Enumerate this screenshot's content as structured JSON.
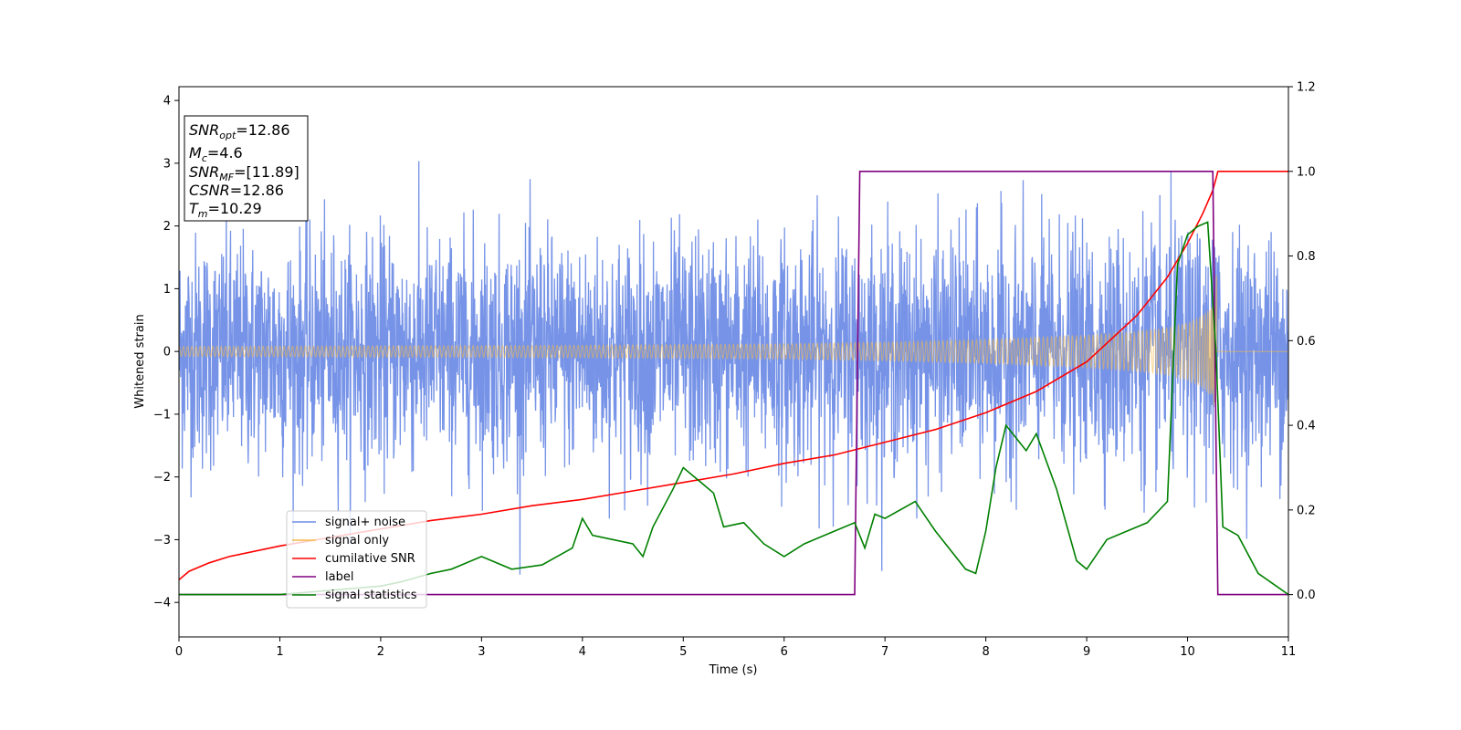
{
  "chart_data": {
    "type": "line",
    "xlabel": "Time (s)",
    "ylabel_left": "Whitened strain",
    "ylabel_right": "",
    "xlim": [
      0,
      11
    ],
    "ylim_left": [
      -4.55,
      4.22
    ],
    "ylim_right": [
      -0.1,
      1.2
    ],
    "xticks": [
      "0",
      "1",
      "2",
      "3",
      "4",
      "5",
      "6",
      "7",
      "8",
      "9",
      "10",
      "11"
    ],
    "yticks_left": [
      "4",
      "3",
      "2",
      "1",
      "0",
      "−1",
      "−2",
      "−3",
      "−4"
    ],
    "yticks_right": [
      "1.2",
      "1.0",
      "0.8",
      "0.6",
      "0.4",
      "0.2",
      "0.0"
    ],
    "grid": false,
    "legend_position": "lower-left",
    "info_box": {
      "snr_opt_main": "SNR",
      "snr_opt_sub": "opt",
      "snr_opt_value": "=12.86",
      "mc_main": "M",
      "mc_sub": "c",
      "mc_value": "=4.6",
      "snr_mf_main": "SNR",
      "snr_mf_sub": "MF",
      "snr_mf_value": "=[11.89]",
      "csnr_main": "CSNR",
      "csnr_value": "=12.86",
      "tm_main": "T",
      "tm_sub": "m",
      "tm_value": "=10.29"
    },
    "series": [
      {
        "name": "signal+ noise",
        "color": "#6f8de6",
        "axis": "left",
        "description_params": {
          "noise_std": 0.9,
          "merger_time": 10.29
        }
      },
      {
        "name": "signal only",
        "color": "#f5b947",
        "axis": "left",
        "envelope_x": [
          0,
          2,
          4,
          6,
          7,
          8,
          9,
          9.5,
          9.8,
          10.0,
          10.15,
          10.25,
          10.29,
          10.3,
          11
        ],
        "envelope_y": [
          0.08,
          0.09,
          0.1,
          0.12,
          0.15,
          0.19,
          0.26,
          0.32,
          0.38,
          0.46,
          0.58,
          0.75,
          1.25,
          0,
          0
        ]
      },
      {
        "name": "cumilative SNR",
        "color": "#ff0000",
        "axis": "right",
        "x": [
          0,
          0.1,
          0.3,
          0.5,
          1,
          1.5,
          2,
          2.5,
          3,
          3.5,
          4,
          4.5,
          5,
          5.5,
          6,
          6.5,
          7,
          7.5,
          8,
          8.5,
          9,
          9.5,
          9.8,
          10.0,
          10.15,
          10.25,
          10.29,
          10.3,
          11
        ],
        "y": [
          0.035,
          0.055,
          0.075,
          0.09,
          0.115,
          0.135,
          0.155,
          0.175,
          0.19,
          0.21,
          0.225,
          0.245,
          0.265,
          0.285,
          0.31,
          0.33,
          0.36,
          0.39,
          0.43,
          0.48,
          0.55,
          0.66,
          0.75,
          0.83,
          0.9,
          0.955,
          0.99,
          1.0,
          1.0
        ]
      },
      {
        "name": "label",
        "color": "#800080",
        "axis": "right",
        "x": [
          0,
          6.7,
          6.75,
          10.25,
          10.3,
          11
        ],
        "y": [
          0,
          0,
          1,
          1,
          0,
          0
        ]
      },
      {
        "name": "signal statistics",
        "color": "#008000",
        "axis": "right",
        "x": [
          0,
          1,
          2,
          2.2,
          2.5,
          2.7,
          3,
          3.3,
          3.6,
          3.9,
          4.0,
          4.1,
          4.3,
          4.5,
          4.6,
          4.7,
          4.9,
          5.0,
          5.2,
          5.3,
          5.4,
          5.6,
          5.8,
          6.0,
          6.2,
          6.5,
          6.7,
          6.8,
          6.9,
          7.0,
          7.3,
          7.5,
          7.8,
          7.9,
          8.0,
          8.1,
          8.2,
          8.3,
          8.4,
          8.5,
          8.7,
          8.9,
          9.0,
          9.2,
          9.4,
          9.6,
          9.8,
          9.9,
          10.0,
          10.1,
          10.2,
          10.28,
          10.35,
          10.5,
          10.7,
          11
        ],
        "y": [
          0.0,
          0.0,
          0.02,
          0.03,
          0.05,
          0.06,
          0.09,
          0.06,
          0.07,
          0.11,
          0.18,
          0.14,
          0.13,
          0.12,
          0.09,
          0.16,
          0.25,
          0.3,
          0.26,
          0.24,
          0.16,
          0.17,
          0.12,
          0.09,
          0.12,
          0.15,
          0.17,
          0.11,
          0.19,
          0.18,
          0.22,
          0.15,
          0.06,
          0.05,
          0.15,
          0.3,
          0.4,
          0.37,
          0.34,
          0.38,
          0.25,
          0.08,
          0.06,
          0.13,
          0.15,
          0.17,
          0.22,
          0.78,
          0.85,
          0.87,
          0.88,
          0.58,
          0.16,
          0.14,
          0.05,
          0.0
        ]
      }
    ]
  }
}
